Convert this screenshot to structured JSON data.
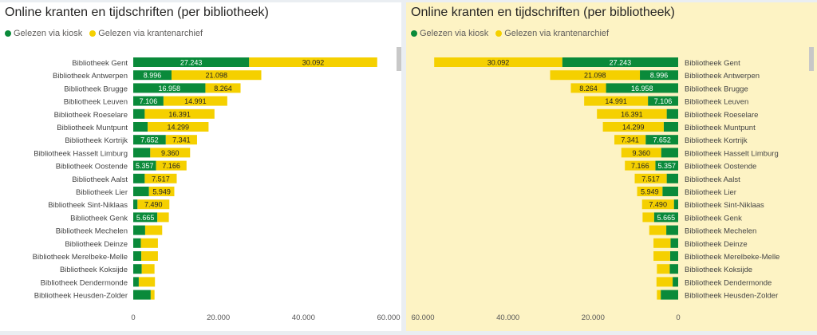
{
  "left_panel": {
    "title": "Online kranten en tijdschriften (per bibliotheek)",
    "legend": [
      {
        "label": "Gelezen via kiosk",
        "color": "#0a8a3a"
      },
      {
        "label": "Gelezen via krantenarchief",
        "color": "#f5d000"
      }
    ],
    "chart_data": {
      "type": "bar",
      "orientation": "horizontal-stacked",
      "title": "Online kranten en tijdschriften (per bibliotheek)",
      "categories": [
        "Bibliotheek Gent",
        "Bibliotheek Antwerpen",
        "Bibliotheek Brugge",
        "Bibliotheek Leuven",
        "Bibliotheek Roeselare",
        "Bibliotheek Muntpunt",
        "Bibliotheek Kortrijk",
        "Bibliotheek Hasselt Limburg",
        "Bibliotheek Oostende",
        "Bibliotheek Aalst",
        "Bibliotheek Lier",
        "Bibliotheek Sint-Niklaas",
        "Bibliotheek Genk",
        "Bibliotheek Mechelen",
        "Bibliotheek Deinze",
        "Bibliotheek Merelbeke-Melle",
        "Bibliotheek Koksijde",
        "Bibliotheek Dendermonde",
        "Bibliotheek Heusden-Zolder"
      ],
      "series": [
        {
          "name": "Gelezen via kiosk",
          "color": "#0a8a3a",
          "values": [
            27243,
            8996,
            16958,
            7106,
            2700,
            3400,
            7652,
            4000,
            5357,
            2700,
            3700,
            1000,
            5665,
            2800,
            1800,
            1900,
            2000,
            1300,
            4100
          ],
          "labels": [
            "27.243",
            "8.996",
            "16.958",
            "7.106",
            "",
            "",
            "7.652",
            "",
            "5.357",
            "",
            "",
            "",
            "5.665",
            "",
            "",
            "",
            "",
            "",
            ""
          ]
        },
        {
          "name": "Gelezen via krantenarchief",
          "color": "#f5d000",
          "values": [
            30092,
            21098,
            8264,
            14991,
            16391,
            14299,
            7341,
            9360,
            7166,
            7517,
            5949,
            7490,
            2700,
            4000,
            4000,
            3900,
            3000,
            3800,
            900
          ],
          "labels": [
            "30.092",
            "21.098",
            "8.264",
            "14.991",
            "16.391",
            "14.299",
            "7.341",
            "9.360",
            "7.166",
            "7.517",
            "5.949",
            "7.490",
            "",
            "",
            "",
            "",
            "",
            "",
            ""
          ]
        }
      ],
      "xlim": [
        0,
        60000
      ],
      "xticks": [
        0,
        20000,
        40000,
        60000
      ],
      "xtick_labels": [
        "0",
        "20.000",
        "40.000",
        "60.000"
      ],
      "legend_position": "top-left"
    }
  },
  "right_panel": {
    "title": "Online kranten en tijdschriften (per bibliotheek)",
    "legend": [
      {
        "label": "Gelezen via kiosk",
        "color": "#0a8a3a"
      },
      {
        "label": "Gelezen via krantenarchief",
        "color": "#f5d000"
      }
    ],
    "chart_data": {
      "type": "bar",
      "orientation": "horizontal-stacked-reversed",
      "title": "Online kranten en tijdschriften (per bibliotheek)",
      "categories": [
        "Bibliotheek Gent",
        "Bibliotheek Antwerpen",
        "Bibliotheek Brugge",
        "Bibliotheek Leuven",
        "Bibliotheek Roeselare",
        "Bibliotheek Muntpunt",
        "Bibliotheek Kortrijk",
        "Bibliotheek Hasselt Limburg",
        "Bibliotheek Oostende",
        "Bibliotheek Aalst",
        "Bibliotheek Lier",
        "Bibliotheek Sint-Niklaas",
        "Bibliotheek Genk",
        "Bibliotheek Mechelen",
        "Bibliotheek Deinze",
        "Bibliotheek Merelbeke-Melle",
        "Bibliotheek Koksijde",
        "Bibliotheek Dendermonde",
        "Bibliotheek Heusden-Zolder"
      ],
      "series": [
        {
          "name": "Gelezen via kiosk",
          "color": "#0a8a3a",
          "values": [
            27243,
            8996,
            16958,
            7106,
            2700,
            3400,
            7652,
            4000,
            5357,
            2700,
            3700,
            1000,
            5665,
            2800,
            1800,
            1900,
            2000,
            1300,
            4100
          ],
          "labels": [
            "27.243",
            "8.996",
            "16.958",
            "7.106",
            "",
            "",
            "7.652",
            "",
            "5.357",
            "",
            "",
            "",
            "5.665",
            "",
            "",
            "",
            "",
            "",
            ""
          ]
        },
        {
          "name": "Gelezen via krantenarchief",
          "color": "#f5d000",
          "values": [
            30092,
            21098,
            8264,
            14991,
            16391,
            14299,
            7341,
            9360,
            7166,
            7517,
            5949,
            7490,
            2700,
            4000,
            4000,
            3900,
            3000,
            3800,
            900
          ],
          "labels": [
            "30.092",
            "21.098",
            "8.264",
            "14.991",
            "16.391",
            "14.299",
            "7.341",
            "9.360",
            "7.166",
            "7.517",
            "5.949",
            "7.490",
            "",
            "",
            "",
            "",
            "",
            "",
            ""
          ]
        }
      ],
      "xlim": [
        0,
        60000
      ],
      "xticks": [
        60000,
        40000,
        20000,
        0
      ],
      "xtick_labels": [
        "60.000",
        "40.000",
        "20.000",
        "0"
      ],
      "legend_position": "top-left"
    }
  }
}
